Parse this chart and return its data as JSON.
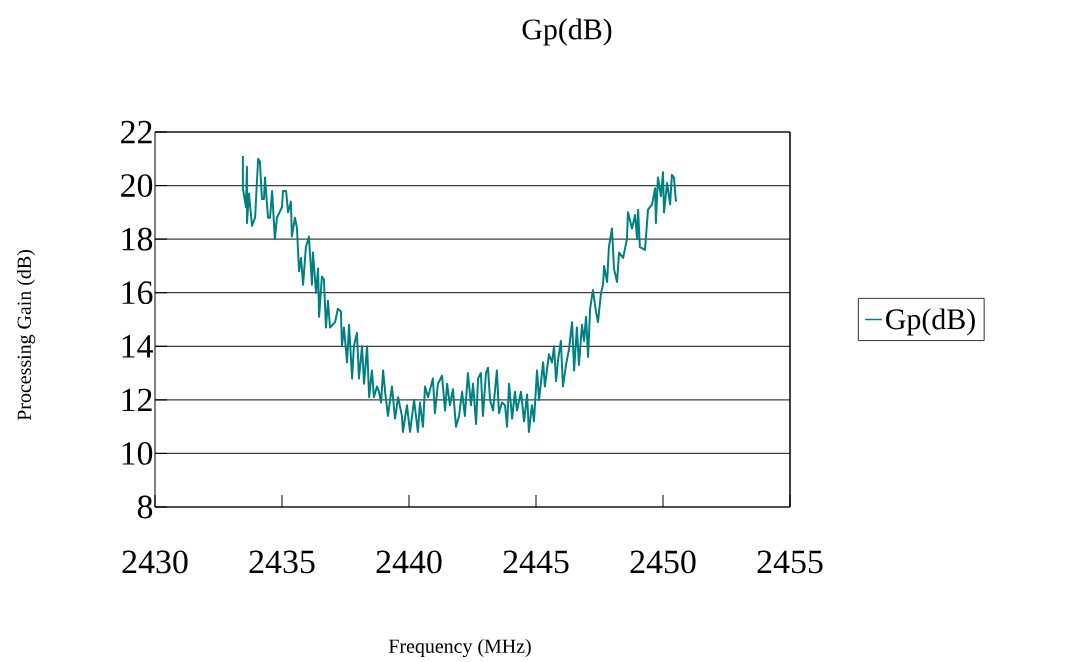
{
  "chart_data": {
    "type": "line",
    "title": "Gp(dB)",
    "xlabel": "Frequency (MHz)",
    "ylabel": "Processing Gain (dB)",
    "xlim": [
      2430,
      2455
    ],
    "xticks": [
      2430,
      2435,
      2440,
      2445,
      2450,
      2455
    ],
    "ylim": [
      8,
      22
    ],
    "yticks": [
      8,
      10,
      12,
      14,
      16,
      18,
      20,
      22
    ],
    "grid": "y",
    "legend": "right",
    "marker": "none",
    "line_style": "solid",
    "series": [
      {
        "name": "Gp(dB)",
        "color": "#008080",
        "x": [
          2433.46,
          2433.46,
          2433.58,
          2433.62,
          2433.62,
          2433.7,
          2433.82,
          2433.94,
          2434.06,
          2434.13,
          2434.21,
          2434.29,
          2434.33,
          2434.45,
          2434.53,
          2434.61,
          2434.72,
          2434.8,
          2435.0,
          2435.04,
          2435.16,
          2435.24,
          2435.35,
          2435.39,
          2435.51,
          2435.59,
          2435.67,
          2435.75,
          2435.83,
          2435.94,
          2436.06,
          2436.18,
          2436.22,
          2436.34,
          2436.42,
          2436.46,
          2436.57,
          2436.65,
          2436.73,
          2436.81,
          2436.89,
          2437.09,
          2437.2,
          2437.32,
          2437.36,
          2437.44,
          2437.56,
          2437.64,
          2437.76,
          2437.83,
          2437.95,
          2438.03,
          2438.15,
          2438.23,
          2438.35,
          2438.43,
          2438.54,
          2438.62,
          2438.74,
          2438.82,
          2438.9,
          2438.98,
          2439.06,
          2439.17,
          2439.33,
          2439.45,
          2439.57,
          2439.72,
          2439.76,
          2439.92,
          2440.04,
          2440.2,
          2440.35,
          2440.43,
          2440.55,
          2440.63,
          2440.75,
          2440.94,
          2441.02,
          2441.14,
          2441.3,
          2441.42,
          2441.5,
          2441.61,
          2441.73,
          2441.85,
          2441.97,
          2442.09,
          2442.2,
          2442.32,
          2442.44,
          2442.52,
          2442.64,
          2442.72,
          2442.83,
          2442.91,
          2443.03,
          2443.11,
          2443.19,
          2443.31,
          2443.46,
          2443.54,
          2443.66,
          2443.78,
          2443.86,
          2443.94,
          2444.06,
          2444.17,
          2444.25,
          2444.41,
          2444.53,
          2444.65,
          2444.72,
          2444.84,
          2444.92,
          2445.04,
          2445.12,
          2445.28,
          2445.35,
          2445.51,
          2445.63,
          2445.71,
          2445.79,
          2445.87,
          2445.98,
          2446.06,
          2446.18,
          2446.3,
          2446.42,
          2446.5,
          2446.61,
          2446.69,
          2446.81,
          2446.89,
          2446.97,
          2447.05,
          2447.13,
          2447.24,
          2447.36,
          2447.44,
          2447.56,
          2447.64,
          2447.68,
          2447.8,
          2447.87,
          2447.99,
          2448.07,
          2448.19,
          2448.27,
          2448.43,
          2448.58,
          2448.62,
          2448.78,
          2448.9,
          2448.98,
          2449.02,
          2449.09,
          2449.29,
          2449.41,
          2449.57,
          2449.69,
          2449.72,
          2449.8,
          2449.92,
          2450.0,
          2450.04,
          2450.16,
          2450.28,
          2450.35,
          2450.43,
          2450.51
        ],
        "values": [
          21.1,
          19.9,
          19.2,
          20.7,
          18.6,
          19.7,
          18.5,
          18.8,
          21.0,
          20.9,
          19.5,
          19.5,
          20.3,
          18.8,
          18.8,
          19.8,
          18.0,
          18.8,
          19.2,
          19.8,
          19.8,
          19.0,
          19.4,
          18.1,
          18.8,
          18.4,
          16.8,
          17.3,
          16.3,
          17.7,
          18.1,
          16.3,
          17.5,
          16.0,
          16.9,
          15.1,
          16.6,
          16.5,
          14.7,
          15.7,
          14.7,
          14.9,
          15.4,
          15.3,
          14.0,
          14.7,
          13.4,
          14.8,
          12.8,
          14.0,
          14.5,
          12.8,
          14.0,
          12.6,
          14.0,
          12.1,
          13.1,
          12.1,
          12.5,
          12.3,
          11.9,
          13.1,
          12.3,
          11.4,
          12.5,
          11.3,
          12.1,
          11.4,
          10.8,
          11.8,
          10.8,
          12.0,
          10.8,
          11.9,
          11.0,
          12.5,
          12.1,
          12.8,
          11.5,
          12.6,
          12.9,
          11.6,
          12.6,
          11.8,
          12.4,
          11.0,
          11.4,
          12.3,
          11.4,
          13.0,
          11.8,
          12.6,
          11.1,
          12.8,
          13.0,
          11.4,
          13.0,
          13.2,
          12.0,
          11.6,
          13.1,
          11.5,
          11.9,
          11.8,
          11.0,
          12.6,
          11.3,
          12.3,
          11.6,
          12.3,
          11.2,
          12.2,
          10.8,
          11.8,
          11.2,
          13.1,
          12.0,
          13.4,
          12.5,
          13.7,
          13.4,
          14.0,
          12.7,
          13.5,
          14.2,
          12.5,
          13.3,
          13.9,
          14.9,
          13.1,
          14.7,
          13.3,
          14.8,
          14.2,
          15.1,
          13.6,
          15.4,
          16.1,
          15.3,
          14.9,
          16.0,
          16.3,
          17.0,
          16.4,
          17.7,
          18.4,
          16.9,
          16.4,
          17.5,
          17.3,
          18.0,
          19.0,
          18.4,
          18.9,
          18.0,
          19.1,
          17.7,
          17.6,
          19.1,
          19.3,
          19.9,
          18.6,
          20.3,
          19.6,
          20.5,
          19.0,
          20.1,
          19.3,
          20.4,
          20.3,
          19.4
        ]
      }
    ]
  }
}
